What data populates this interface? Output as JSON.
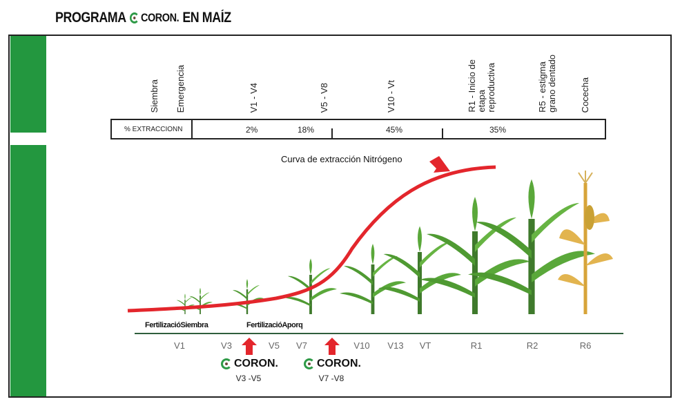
{
  "title": {
    "prefix": "PROGRAMA",
    "brand": "CORON.",
    "suffix": "EN MAÍZ"
  },
  "top_labels": [
    "Siembra",
    "Emergencia",
    "V1 - V4",
    "V5 - V8",
    "V10 - Vt",
    "R1 - Inicio de\netapa\nreproductiva",
    "R5 - estigma\ngrano dentado",
    "Cocecha"
  ],
  "table": {
    "header": "% EXTRACCIONN",
    "values": [
      "2%",
      "18%",
      "45%",
      "35%"
    ]
  },
  "curve_label": "Curva de extracción Nitrógeno",
  "fertilization": [
    "FertilizacióSiembra",
    "FertilizacióAporq"
  ],
  "stages": [
    "V1",
    "V3",
    "V5",
    "V7",
    "V10",
    "V13",
    "VT",
    "R1",
    "R2",
    "R6"
  ],
  "applications": [
    {
      "brand": "CORON.",
      "range": "V3 -V5"
    },
    {
      "brand": "CORON.",
      "range": "V7 -V8"
    }
  ],
  "colors": {
    "green": "#23973f",
    "red": "#e3262c",
    "line": "#2f5e3c"
  }
}
